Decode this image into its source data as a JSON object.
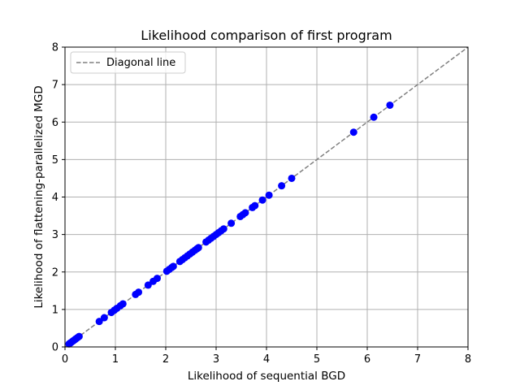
{
  "chart_data": {
    "type": "scatter",
    "title": "Likelihood comparison of first program",
    "xlabel": "Likelihood of sequential BGD",
    "ylabel": "Likelihood of flattening-parallelized MGD",
    "xlim": [
      0,
      8
    ],
    "ylim": [
      0,
      8
    ],
    "xticks": [
      "0",
      "1",
      "2",
      "3",
      "4",
      "5",
      "6",
      "7",
      "8"
    ],
    "yticks": [
      "0",
      "1",
      "2",
      "3",
      "4",
      "5",
      "6",
      "7",
      "8"
    ],
    "grid": true,
    "legend_position": "top-left",
    "series": [
      {
        "marker": "circle",
        "color": "#0000ff",
        "x": [
          0.08,
          0.1,
          0.12,
          0.15,
          0.17,
          0.2,
          0.22,
          0.25,
          0.28,
          0.68,
          0.78,
          0.92,
          0.98,
          1.03,
          1.1,
          1.15,
          1.4,
          1.46,
          1.65,
          1.75,
          1.83,
          2.02,
          2.07,
          2.12,
          2.15,
          2.28,
          2.33,
          2.38,
          2.43,
          2.48,
          2.53,
          2.58,
          2.62,
          2.65,
          2.8,
          2.85,
          2.9,
          2.95,
          3.0,
          3.05,
          3.1,
          3.15,
          3.3,
          3.48,
          3.53,
          3.58,
          3.72,
          3.77,
          3.92,
          4.05,
          4.3,
          4.5,
          5.73,
          6.13,
          6.45
        ],
        "y": [
          0.08,
          0.1,
          0.12,
          0.15,
          0.17,
          0.2,
          0.22,
          0.25,
          0.28,
          0.68,
          0.78,
          0.92,
          0.98,
          1.03,
          1.1,
          1.15,
          1.4,
          1.46,
          1.65,
          1.75,
          1.83,
          2.02,
          2.07,
          2.12,
          2.15,
          2.28,
          2.33,
          2.38,
          2.43,
          2.48,
          2.53,
          2.58,
          2.62,
          2.65,
          2.8,
          2.85,
          2.9,
          2.95,
          3.0,
          3.05,
          3.1,
          3.15,
          3.3,
          3.48,
          3.53,
          3.58,
          3.72,
          3.77,
          3.92,
          4.05,
          4.3,
          4.5,
          5.73,
          6.13,
          6.45
        ]
      },
      {
        "name": "Diagonal line",
        "line_style": "dashed",
        "color": "#808080",
        "x": [
          0,
          8
        ],
        "y": [
          0,
          8
        ]
      }
    ]
  }
}
